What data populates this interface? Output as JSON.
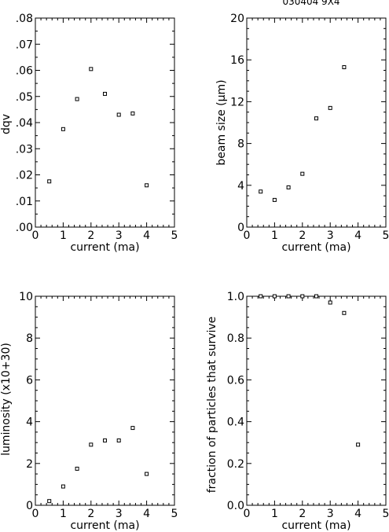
{
  "figure_title": "030404 9X4",
  "chart_data": [
    {
      "type": "scatter",
      "title": "",
      "xlabel": "current (ma)",
      "ylabel": "dqv",
      "xlim": [
        0,
        5
      ],
      "ylim": [
        0,
        0.08
      ],
      "x_ticks": [
        0,
        1,
        2,
        3,
        4,
        5
      ],
      "y_ticks": [
        0,
        0.01,
        0.02,
        0.03,
        0.04,
        0.05,
        0.06,
        0.07,
        0.08
      ],
      "y_tick_labels": [
        ".00",
        ".01",
        ".02",
        ".03",
        ".04",
        ".05",
        ".06",
        ".07",
        ".08"
      ],
      "x": [
        0.5,
        1.0,
        1.5,
        2.0,
        2.5,
        3.0,
        3.5,
        4.0
      ],
      "y": [
        0.0175,
        0.0375,
        0.049,
        0.0605,
        0.051,
        0.043,
        0.0435,
        0.016
      ]
    },
    {
      "type": "scatter",
      "title": "",
      "xlabel": "current (ma)",
      "ylabel": "beam size (μm)",
      "xlim": [
        0,
        5
      ],
      "ylim": [
        0,
        20
      ],
      "x_ticks": [
        0,
        1,
        2,
        3,
        4,
        5
      ],
      "y_ticks": [
        0,
        4,
        8,
        12,
        16,
        20
      ],
      "y_tick_labels": [
        "0",
        "4",
        "8",
        "12",
        "16",
        "20"
      ],
      "x": [
        0.5,
        1.0,
        1.5,
        2.0,
        2.5,
        3.0,
        3.5
      ],
      "y": [
        3.4,
        2.6,
        3.8,
        5.1,
        10.4,
        11.4,
        15.3
      ]
    },
    {
      "type": "scatter",
      "title": "",
      "xlabel": "current (ma)",
      "ylabel": "luminosity (x10+30)",
      "xlim": [
        0,
        5
      ],
      "ylim": [
        0,
        10
      ],
      "x_ticks": [
        0,
        1,
        2,
        3,
        4,
        5
      ],
      "y_ticks": [
        0,
        2,
        4,
        6,
        8,
        10
      ],
      "y_tick_labels": [
        "0",
        "2",
        "4",
        "6",
        "8",
        "10"
      ],
      "x": [
        0.5,
        1.0,
        1.5,
        2.0,
        2.5,
        3.0,
        3.5,
        4.0
      ],
      "y": [
        0.2,
        0.9,
        1.75,
        2.9,
        3.1,
        3.1,
        3.7,
        1.5
      ]
    },
    {
      "type": "scatter",
      "title": "",
      "xlabel": "current (ma)",
      "ylabel": "fraction of particles that survive",
      "xlim": [
        0,
        5
      ],
      "ylim": [
        0,
        1.0
      ],
      "x_ticks": [
        0,
        1,
        2,
        3,
        4,
        5
      ],
      "y_ticks": [
        0,
        0.2,
        0.4,
        0.6,
        0.8,
        1.0
      ],
      "y_tick_labels": [
        "0.0",
        "0.2",
        "0.4",
        "0.6",
        "0.8",
        "1.0"
      ],
      "x": [
        0.5,
        1.0,
        1.5,
        2.0,
        2.5,
        3.0,
        3.5,
        4.0
      ],
      "y": [
        1.0,
        1.0,
        1.0,
        1.0,
        1.0,
        0.97,
        0.92,
        0.29
      ]
    }
  ]
}
